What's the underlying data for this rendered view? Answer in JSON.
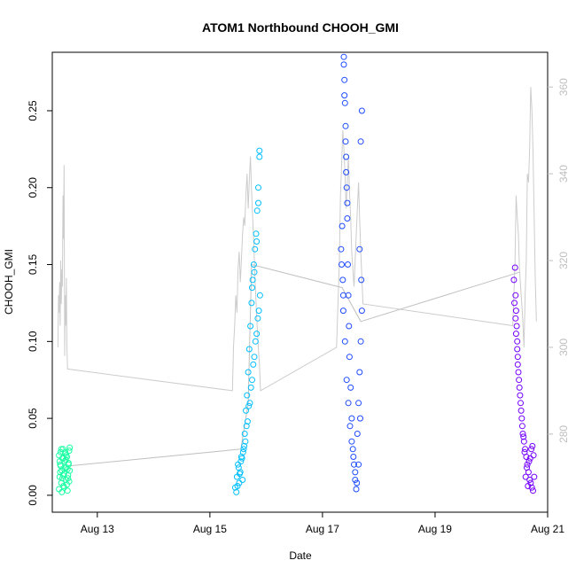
{
  "chart_data": {
    "type": "scatter",
    "title": "ATOM1 Northbound CHOOH_GMI",
    "xlabel": "Date",
    "ylabel": "CHOOH_GMI",
    "ylabel_right": "",
    "xlim": [
      12.2,
      21.0
    ],
    "ylim": [
      -0.011,
      0.288
    ],
    "y2lim": [
      262,
      368
    ],
    "x_ticks": [
      {
        "value": 13,
        "label": "Aug 13"
      },
      {
        "value": 15,
        "label": "Aug 15"
      },
      {
        "value": 17,
        "label": "Aug 17"
      },
      {
        "value": 19,
        "label": "Aug 19"
      },
      {
        "value": 21,
        "label": "Aug 21"
      }
    ],
    "y_ticks": [
      {
        "value": 0.0,
        "label": "0.00"
      },
      {
        "value": 0.05,
        "label": "0.05"
      },
      {
        "value": 0.1,
        "label": "0.10"
      },
      {
        "value": 0.15,
        "label": "0.15"
      },
      {
        "value": 0.2,
        "label": "0.20"
      },
      {
        "value": 0.25,
        "label": "0.25"
      }
    ],
    "y2_ticks": [
      {
        "value": 280,
        "label": "280"
      },
      {
        "value": 300,
        "label": "300"
      },
      {
        "value": 320,
        "label": "320"
      },
      {
        "value": 340,
        "label": "340"
      },
      {
        "value": 360,
        "label": "360"
      }
    ],
    "grid": false,
    "series": [
      {
        "color": "#1affa3",
        "x": [
          12.32,
          12.33,
          12.34,
          12.35,
          12.36,
          12.37,
          12.38,
          12.39,
          12.4,
          12.41,
          12.42,
          12.43,
          12.44,
          12.45,
          12.46,
          12.47,
          12.48,
          12.49,
          12.5,
          12.51,
          12.32,
          12.35,
          12.38,
          12.41,
          12.44,
          12.47,
          12.5,
          12.34,
          12.37,
          12.4,
          12.43,
          12.46,
          12.49,
          12.33,
          12.36,
          12.39,
          12.42,
          12.45,
          12.48,
          12.51
        ],
        "y": [
          0.004,
          0.012,
          0.02,
          0.028,
          0.008,
          0.016,
          0.024,
          0.03,
          0.006,
          0.014,
          0.022,
          0.027,
          0.01,
          0.018,
          0.025,
          0.003,
          0.013,
          0.021,
          0.029,
          0.031,
          0.026,
          0.019,
          0.011,
          0.005,
          0.023,
          0.017,
          0.009,
          0.015,
          0.002,
          0.024,
          0.028,
          0.007,
          0.02,
          0.022,
          0.03,
          0.013,
          0.018,
          0.026,
          0.011,
          0.016
        ]
      },
      {
        "color": "#00bfff",
        "x": [
          15.45,
          15.48,
          15.5,
          15.52,
          15.54,
          15.56,
          15.58,
          15.6,
          15.62,
          15.64,
          15.66,
          15.68,
          15.7,
          15.72,
          15.74,
          15.76,
          15.78,
          15.8,
          15.82,
          15.84,
          15.86,
          15.88,
          15.47,
          15.51,
          15.55,
          15.59,
          15.63,
          15.67,
          15.71,
          15.75,
          15.79,
          15.83,
          15.87,
          15.49,
          15.53,
          15.57,
          15.61,
          15.65,
          15.69,
          15.73,
          15.77,
          15.81,
          15.85,
          15.89,
          15.75,
          15.79,
          15.83,
          15.86,
          15.88
        ],
        "y": [
          0.005,
          0.012,
          0.02,
          0.008,
          0.015,
          0.025,
          0.01,
          0.03,
          0.04,
          0.055,
          0.065,
          0.08,
          0.095,
          0.11,
          0.125,
          0.14,
          0.15,
          0.16,
          0.17,
          0.185,
          0.2,
          0.22,
          0.002,
          0.018,
          0.022,
          0.028,
          0.035,
          0.048,
          0.06,
          0.075,
          0.09,
          0.105,
          0.12,
          0.006,
          0.014,
          0.024,
          0.032,
          0.045,
          0.058,
          0.07,
          0.085,
          0.1,
          0.115,
          0.13,
          0.135,
          0.145,
          0.165,
          0.19,
          0.224
        ]
      },
      {
        "color": "#1e4bff",
        "x": [
          17.33,
          17.35,
          17.36,
          17.37,
          17.38,
          17.39,
          17.4,
          17.41,
          17.42,
          17.43,
          17.44,
          17.45,
          17.46,
          17.47,
          17.48,
          17.5,
          17.52,
          17.54,
          17.56,
          17.58,
          17.6,
          17.62,
          17.64,
          17.66,
          17.68,
          17.7,
          17.34,
          17.37,
          17.4,
          17.43,
          17.46,
          17.49,
          17.52,
          17.55,
          17.58,
          17.61,
          17.64,
          17.67,
          17.69,
          17.38,
          17.39,
          17.41,
          17.42,
          17.44,
          17.66,
          17.68,
          17.7
        ],
        "y": [
          0.16,
          0.175,
          0.14,
          0.12,
          0.28,
          0.27,
          0.255,
          0.24,
          0.22,
          0.2,
          0.18,
          0.15,
          0.13,
          0.11,
          0.09,
          0.07,
          0.05,
          0.03,
          0.02,
          0.01,
          0.004,
          0.04,
          0.06,
          0.08,
          0.1,
          0.12,
          0.15,
          0.13,
          0.1,
          0.075,
          0.06,
          0.045,
          0.035,
          0.025,
          0.015,
          0.008,
          0.02,
          0.05,
          0.14,
          0.285,
          0.26,
          0.23,
          0.21,
          0.19,
          0.16,
          0.23,
          0.25
        ]
      },
      {
        "color": "#7400ff",
        "x": [
          20.4,
          20.42,
          20.43,
          20.44,
          20.45,
          20.46,
          20.47,
          20.48,
          20.5,
          20.52,
          20.54,
          20.56,
          20.58,
          20.6,
          20.62,
          20.64,
          20.66,
          20.68,
          20.7,
          20.72,
          20.74,
          20.76,
          20.41,
          20.44,
          20.47,
          20.51,
          20.55,
          20.59,
          20.63,
          20.67,
          20.71,
          20.75,
          20.43,
          20.46,
          20.49,
          20.53,
          20.57,
          20.61,
          20.65,
          20.69,
          20.73
        ],
        "y": [
          0.14,
          0.148,
          0.13,
          0.12,
          0.11,
          0.1,
          0.09,
          0.08,
          0.07,
          0.06,
          0.05,
          0.04,
          0.035,
          0.03,
          0.025,
          0.02,
          0.015,
          0.01,
          0.008,
          0.005,
          0.003,
          0.012,
          0.125,
          0.105,
          0.085,
          0.065,
          0.045,
          0.028,
          0.018,
          0.022,
          0.03,
          0.026,
          0.115,
          0.095,
          0.075,
          0.055,
          0.038,
          0.012,
          0.006,
          0.024,
          0.032
        ]
      }
    ],
    "connector": {
      "color": "#c0c0c0",
      "x": [
        12.48,
        15.55,
        15.68,
        15.74,
        17.35,
        17.68,
        20.5
      ],
      "y": [
        0.019,
        0.03,
        0.06,
        0.15,
        0.135,
        0.113,
        0.145
      ]
    },
    "right_axis_series": {
      "color": "#cccccc",
      "x": [
        12.3,
        12.31,
        12.32,
        12.33,
        12.34,
        12.35,
        12.36,
        12.37,
        12.38,
        12.39,
        12.4,
        12.41,
        12.42,
        12.43,
        12.44,
        12.45,
        12.46,
        12.47,
        15.4,
        15.42,
        15.44,
        15.46,
        15.48,
        15.5,
        15.52,
        15.54,
        15.56,
        15.58,
        15.6,
        15.62,
        15.64,
        15.66,
        15.68,
        15.7,
        15.72,
        15.74,
        15.76,
        15.78,
        15.8,
        15.82,
        15.84,
        15.86,
        15.88,
        15.9,
        17.25,
        17.28,
        17.3,
        17.32,
        17.34,
        17.36,
        17.38,
        17.4,
        17.42,
        17.44,
        17.46,
        17.48,
        17.5,
        17.52,
        17.54,
        17.56,
        17.58,
        17.6,
        17.62,
        17.64,
        17.66,
        17.68,
        17.7,
        17.72,
        20.38,
        20.4,
        20.42,
        20.44,
        20.46,
        20.48,
        20.5,
        20.52,
        20.54,
        20.56,
        20.58,
        20.6,
        20.62,
        20.64,
        20.66,
        20.68,
        20.7,
        20.72,
        20.74,
        20.76,
        20.78,
        20.8
      ],
      "y": [
        300,
        312,
        308,
        315,
        305,
        320,
        310,
        318,
        314,
        335,
        325,
        342,
        298,
        312,
        305,
        316,
        300,
        295,
        290,
        300,
        305,
        312,
        308,
        318,
        322,
        315,
        320,
        326,
        330,
        328,
        335,
        340,
        332,
        338,
        344,
        336,
        330,
        324,
        316,
        310,
        305,
        300,
        296,
        290,
        300,
        312,
        320,
        335,
        342,
        350,
        346,
        340,
        332,
        338,
        344,
        336,
        330,
        322,
        318,
        314,
        320,
        326,
        332,
        338,
        330,
        322,
        316,
        310,
        305,
        312,
        320,
        335,
        330,
        326,
        318,
        314,
        310,
        306,
        300,
        312,
        320,
        340,
        338,
        346,
        360,
        355,
        345,
        330,
        316,
        306
      ]
    }
  }
}
